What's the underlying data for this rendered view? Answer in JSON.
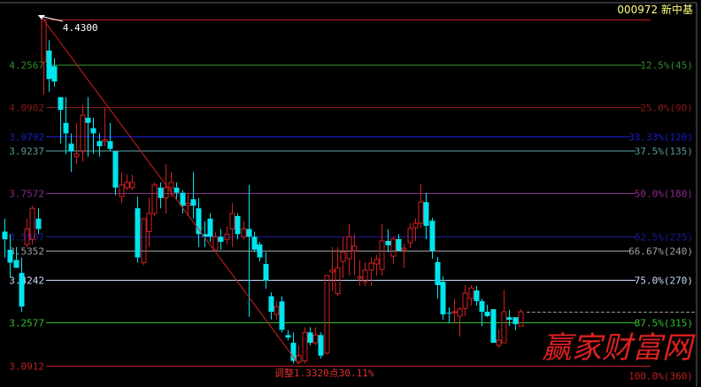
{
  "header": {
    "code": "000972",
    "name": "新中基"
  },
  "watermark": "赢家财富网",
  "chart_data": {
    "type": "candlestick",
    "title": "",
    "high_label": "4.4300",
    "adjust_label": "调整1.3320点30.11%",
    "ylim": [
      3.0912,
      4.43
    ],
    "current_price": 3.3,
    "colors": {
      "up": "#d02020",
      "down": "#00e5ee",
      "background": "#000000",
      "trendline": "#d02020"
    },
    "levels": [
      {
        "price": 4.43,
        "left": "",
        "right": "",
        "color": "#c02020"
      },
      {
        "price": 4.2567,
        "left": "4.2567",
        "right": "12.5%(45)",
        "color": "#2e8b2e"
      },
      {
        "price": 4.0902,
        "left": "4.0902",
        "right": "25.0%(90)",
        "color": "#8b1a1a"
      },
      {
        "price": 3.9792,
        "left": "3.9792",
        "right": "33.33%(120)",
        "color": "#1a1ad0"
      },
      {
        "price": 3.9237,
        "left": "3.9237",
        "right": "37.5%(135)",
        "color": "#5a9a9a"
      },
      {
        "price": 3.7572,
        "left": "3.7572",
        "right": "50.0%(180)",
        "color": "#8b2a8b"
      },
      {
        "price": 3.5907,
        "left": "3.5907",
        "right": "62.5%(225)",
        "color": "#1a1a9a"
      },
      {
        "price": 3.5352,
        "left": "3.5352",
        "right": "66.67%(240)",
        "color": "#a0a0a0"
      },
      {
        "price": 3.4242,
        "left": "3.4242",
        "right": "75.0%(270)",
        "color": "#c8d8ff"
      },
      {
        "price": 3.2577,
        "left": "3.2577",
        "right": "87.5%(315)",
        "color": "#30c030"
      },
      {
        "price": 3.0912,
        "left": "3.0912",
        "right": "100.0%(360)",
        "color": "#c02020"
      }
    ],
    "ohlc_order": [
      "open",
      "high",
      "low",
      "close"
    ],
    "candles": [
      [
        3.61,
        3.66,
        3.51,
        3.58
      ],
      [
        3.54,
        3.6,
        3.43,
        3.49
      ],
      [
        3.5,
        3.55,
        3.47,
        3.47
      ],
      [
        3.45,
        3.51,
        3.3,
        3.32
      ],
      [
        3.56,
        3.66,
        3.55,
        3.62
      ],
      [
        3.58,
        3.71,
        3.56,
        3.7
      ],
      [
        3.66,
        3.7,
        3.6,
        3.62
      ],
      [
        4.265,
        4.43,
        4.14,
        4.43
      ],
      [
        4.31,
        4.35,
        4.15,
        4.2
      ],
      [
        4.25,
        4.28,
        4.17,
        4.19
      ],
      [
        4.13,
        4.13,
        3.95,
        4.08
      ],
      [
        4.03,
        4.13,
        3.91,
        3.99
      ],
      [
        3.95,
        3.99,
        3.84,
        3.92
      ],
      [
        3.9,
        4.03,
        3.87,
        3.91
      ],
      [
        3.92,
        4.1,
        3.88,
        4.06
      ],
      [
        4.05,
        4.13,
        3.9,
        4.03
      ],
      [
        4.01,
        4.05,
        3.91,
        3.99
      ],
      [
        3.96,
        3.99,
        3.9,
        3.94
      ],
      [
        3.96,
        4.09,
        3.94,
        3.965
      ],
      [
        3.96,
        4.03,
        3.92,
        3.93
      ],
      [
        3.92,
        3.92,
        3.75,
        3.78
      ],
      [
        3.745,
        3.84,
        3.72,
        3.79
      ],
      [
        3.78,
        3.83,
        3.77,
        3.8
      ],
      [
        3.78,
        3.83,
        3.77,
        3.8
      ],
      [
        3.7,
        3.745,
        3.49,
        3.51
      ],
      [
        3.49,
        3.66,
        3.48,
        3.66
      ],
      [
        3.61,
        3.74,
        3.55,
        3.68
      ],
      [
        3.68,
        3.8,
        3.67,
        3.79
      ],
      [
        3.78,
        3.8,
        3.7,
        3.74
      ],
      [
        3.74,
        3.87,
        3.68,
        3.78
      ],
      [
        3.78,
        3.84,
        3.745,
        3.8
      ],
      [
        3.78,
        3.8,
        3.735,
        3.76
      ],
      [
        3.76,
        3.77,
        3.68,
        3.71
      ],
      [
        3.71,
        3.76,
        3.67,
        3.72
      ],
      [
        3.735,
        3.84,
        3.66,
        3.71
      ],
      [
        3.7,
        3.74,
        3.55,
        3.6
      ],
      [
        3.6,
        3.65,
        3.55,
        3.59
      ],
      [
        3.66,
        3.68,
        3.57,
        3.59
      ],
      [
        3.54,
        3.61,
        3.54,
        3.59
      ],
      [
        3.59,
        3.62,
        3.54,
        3.57
      ],
      [
        3.58,
        3.63,
        3.56,
        3.6
      ],
      [
        3.62,
        3.72,
        3.55,
        3.68
      ],
      [
        3.67,
        3.68,
        3.58,
        3.6
      ],
      [
        3.59,
        3.65,
        3.58,
        3.62
      ],
      [
        3.62,
        3.79,
        3.28,
        3.59
      ],
      [
        3.59,
        3.61,
        3.53,
        3.54
      ],
      [
        3.56,
        3.57,
        3.495,
        3.51
      ],
      [
        3.485,
        3.53,
        3.39,
        3.42
      ],
      [
        3.36,
        3.375,
        3.27,
        3.3
      ],
      [
        3.29,
        3.34,
        3.27,
        3.32
      ],
      [
        3.34,
        3.36,
        3.22,
        3.23
      ],
      [
        3.21,
        3.23,
        3.19,
        3.2
      ],
      [
        3.18,
        3.22,
        3.1,
        3.11
      ],
      [
        3.105,
        3.17,
        3.098,
        3.13
      ],
      [
        3.11,
        3.24,
        3.1,
        3.22
      ],
      [
        3.22,
        3.24,
        3.17,
        3.18
      ],
      [
        3.18,
        3.24,
        3.17,
        3.21
      ],
      [
        3.21,
        3.22,
        3.12,
        3.13
      ],
      [
        3.14,
        3.44,
        3.135,
        3.44
      ],
      [
        3.454,
        3.55,
        3.38,
        3.461
      ],
      [
        3.37,
        3.55,
        3.36,
        3.47
      ],
      [
        3.495,
        3.59,
        3.43,
        3.53
      ],
      [
        3.505,
        3.64,
        3.44,
        3.59
      ],
      [
        3.536,
        3.6,
        3.44,
        3.553
      ],
      [
        3.43,
        3.5,
        3.4,
        3.435
      ],
      [
        3.416,
        3.49,
        3.4,
        3.461
      ],
      [
        3.461,
        3.51,
        3.4,
        3.488
      ],
      [
        3.485,
        3.52,
        3.44,
        3.502
      ],
      [
        3.464,
        3.64,
        3.44,
        3.574
      ],
      [
        3.574,
        3.62,
        3.53,
        3.557
      ],
      [
        3.515,
        3.59,
        3.485,
        3.581
      ],
      [
        3.581,
        3.6,
        3.533,
        3.536
      ],
      [
        3.54,
        3.563,
        3.47,
        3.546
      ],
      [
        3.567,
        3.642,
        3.546,
        3.622
      ],
      [
        3.625,
        3.66,
        3.574,
        3.642
      ],
      [
        3.642,
        3.793,
        3.625,
        3.724
      ],
      [
        3.724,
        3.76,
        3.581,
        3.632
      ],
      [
        3.652,
        3.663,
        3.505,
        3.536
      ],
      [
        3.492,
        3.512,
        3.351,
        3.403
      ],
      [
        3.416,
        3.437,
        3.269,
        3.29
      ],
      [
        3.296,
        3.317,
        3.255,
        3.293
      ],
      [
        3.297,
        3.351,
        3.255,
        3.3
      ],
      [
        3.283,
        3.317,
        3.204,
        3.31
      ],
      [
        3.313,
        3.403,
        3.283,
        3.372
      ],
      [
        3.351,
        3.403,
        3.324,
        3.392
      ],
      [
        3.382,
        3.4,
        3.324,
        3.341
      ],
      [
        3.341,
        3.35,
        3.245,
        3.3
      ],
      [
        3.3,
        3.327,
        3.279,
        3.283
      ],
      [
        3.31,
        3.31,
        3.18,
        3.18
      ],
      [
        3.17,
        3.231,
        3.16,
        3.19
      ],
      [
        3.18,
        3.385,
        3.18,
        3.3
      ],
      [
        3.279,
        3.307,
        3.245,
        3.269
      ],
      [
        3.279,
        3.279,
        3.228,
        3.252
      ],
      [
        3.245,
        3.31,
        3.245,
        3.3
      ]
    ]
  }
}
